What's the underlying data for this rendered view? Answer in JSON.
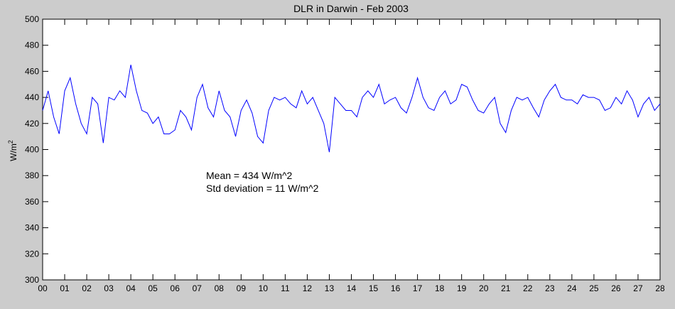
{
  "chart_data": {
    "type": "line",
    "title": "DLR in Darwin - Feb 2003",
    "xlabel": "",
    "ylabel": "W/m",
    "ylabel_sup": "2",
    "xlim": [
      0,
      28
    ],
    "ylim": [
      300,
      500
    ],
    "x_ticks": [
      "00",
      "01",
      "02",
      "03",
      "04",
      "05",
      "06",
      "07",
      "08",
      "09",
      "10",
      "11",
      "12",
      "13",
      "14",
      "15",
      "16",
      "17",
      "18",
      "19",
      "20",
      "21",
      "22",
      "23",
      "24",
      "25",
      "26",
      "27",
      "28"
    ],
    "y_ticks": [
      300,
      320,
      340,
      360,
      380,
      400,
      420,
      440,
      460,
      480,
      500
    ],
    "grid": false,
    "annotations": [
      "Mean = 434 W/m^2",
      "Std deviation = 11 W/m^2"
    ],
    "series": [
      {
        "name": "DLR",
        "color": "#0000ff",
        "x_step_days": 0.25,
        "values": [
          430,
          445,
          425,
          412,
          445,
          455,
          435,
          420,
          412,
          440,
          435,
          405,
          440,
          438,
          445,
          440,
          465,
          445,
          430,
          428,
          420,
          425,
          412,
          412,
          415,
          430,
          425,
          415,
          440,
          450,
          432,
          425,
          445,
          430,
          425,
          410,
          430,
          438,
          428,
          410,
          405,
          430,
          440,
          438,
          440,
          435,
          432,
          445,
          435,
          440,
          430,
          420,
          398,
          440,
          435,
          430,
          430,
          425,
          440,
          445,
          440,
          450,
          435,
          438,
          440,
          432,
          428,
          440,
          455,
          440,
          432,
          430,
          440,
          445,
          435,
          438,
          450,
          448,
          438,
          430,
          428,
          435,
          440,
          420,
          413,
          430,
          440,
          438,
          440,
          432,
          425,
          438,
          445,
          450,
          440,
          438,
          438,
          435,
          442,
          440,
          440,
          438,
          430,
          432,
          440,
          435,
          445,
          438,
          425,
          435,
          440,
          430,
          435
        ]
      }
    ]
  }
}
